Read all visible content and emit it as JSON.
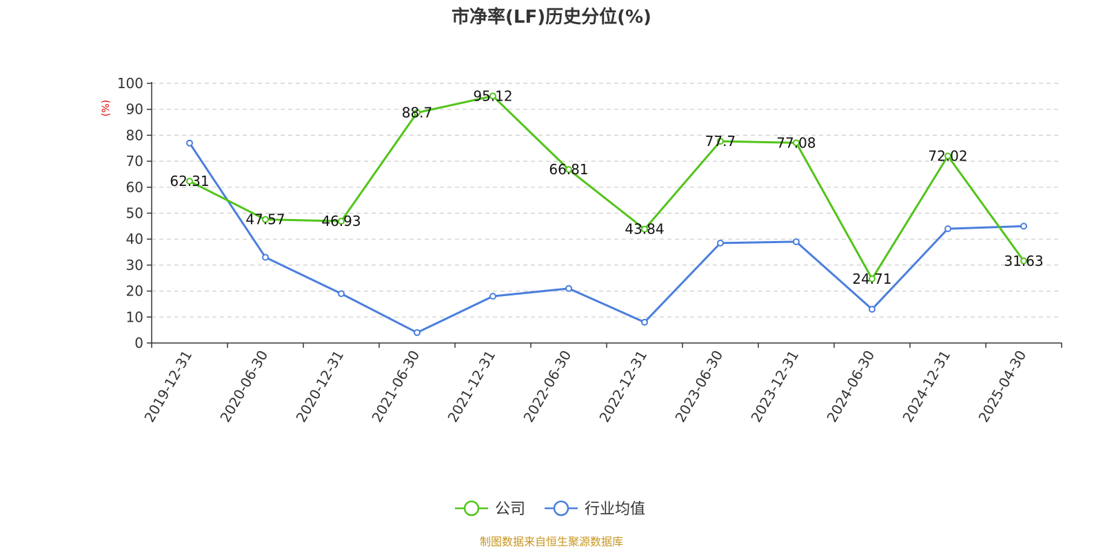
{
  "chart_data": {
    "type": "line",
    "title": "市净率(LF)历史分位(%)",
    "ylabel": "(%)",
    "ylim": [
      0,
      100
    ],
    "yticks": [
      0,
      10,
      20,
      30,
      40,
      50,
      60,
      70,
      80,
      90,
      100
    ],
    "categories": [
      "2019-12-31",
      "2020-06-30",
      "2020-12-31",
      "2021-06-30",
      "2021-12-31",
      "2022-06-30",
      "2022-12-31",
      "2023-06-30",
      "2023-12-31",
      "2024-06-30",
      "2024-12-31",
      "2025-04-30"
    ],
    "series": [
      {
        "name": "公司",
        "color": "#52c41a",
        "values": [
          62.31,
          47.57,
          46.93,
          88.7,
          95.12,
          66.81,
          43.84,
          77.7,
          77.08,
          24.71,
          72.02,
          31.63
        ],
        "labels": [
          "62.31",
          "47.57",
          "46.93",
          "88.7",
          "95.12",
          "66.81",
          "43.84",
          "77.7",
          "77.08",
          "24.71",
          "72.02",
          "31.63"
        ]
      },
      {
        "name": "行业均值",
        "color": "#4a7fdc",
        "values": [
          77,
          33,
          19,
          4,
          18,
          21,
          8,
          38.5,
          39,
          13,
          44,
          45
        ]
      }
    ],
    "grid": true,
    "legend_position": "bottom-center"
  },
  "colors": {
    "ylabel": "#e60000",
    "source": "#c8961e",
    "grid": "#cccccc",
    "axis": "#333333"
  },
  "source_text": "制图数据来自恒生聚源数据库"
}
